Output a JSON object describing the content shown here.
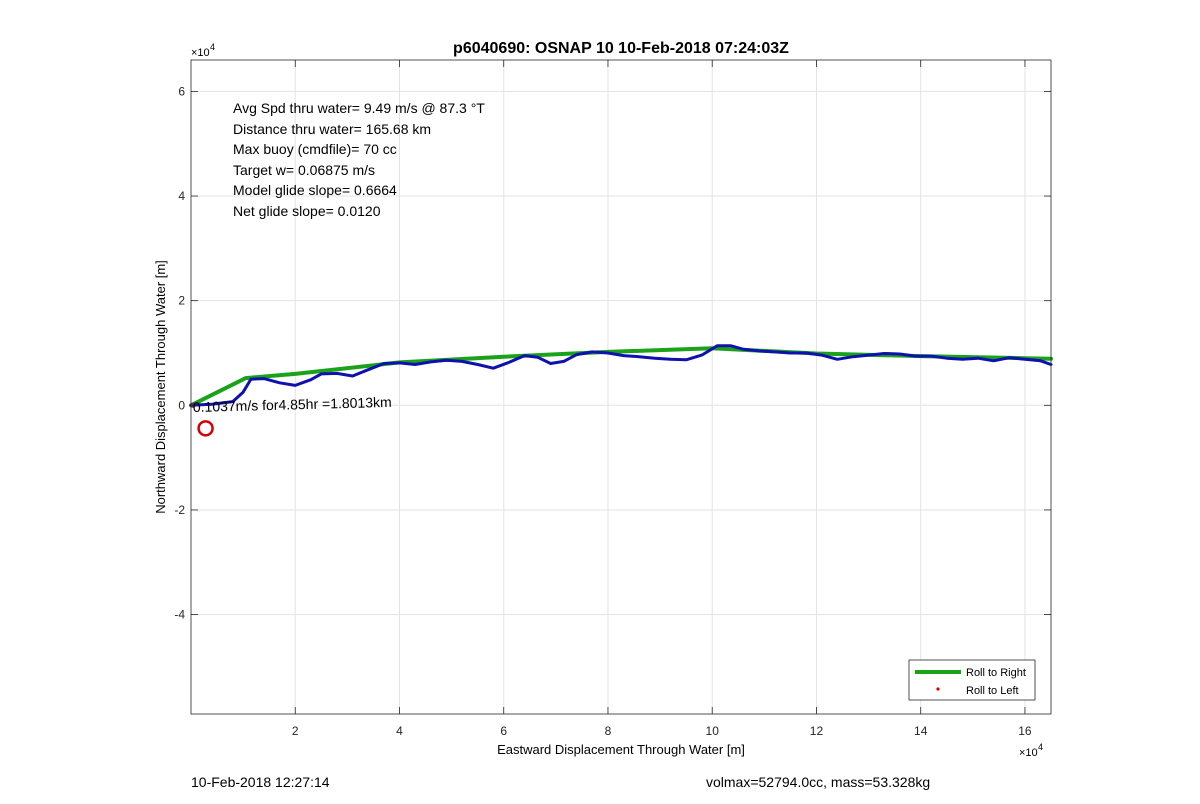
{
  "chart_data": {
    "type": "line",
    "title": "p6040690: OSNAP 10 10-Feb-2018 07:24:03Z",
    "xlabel": "Eastward Displacement Through Water [m]",
    "ylabel": "Northward Displacement Through Water [m]",
    "x_exponent_label": "×10",
    "x_exponent_power": "4",
    "y_exponent_label": "×10",
    "y_exponent_power": "4",
    "xlim": [
      0,
      165000
    ],
    "ylim": [
      -59000,
      66000
    ],
    "xticks": [
      20000,
      40000,
      60000,
      80000,
      100000,
      120000,
      140000,
      160000
    ],
    "xtick_labels": [
      "2",
      "4",
      "6",
      "8",
      "10",
      "12",
      "14",
      "16"
    ],
    "yticks": [
      -40000,
      -20000,
      0,
      20000,
      40000,
      60000
    ],
    "ytick_labels": [
      "-4",
      "-2",
      "0",
      "2",
      "4",
      "6"
    ],
    "grid": true,
    "legend_position": "bottom-right",
    "annotations": [
      "Avg Spd thru water=  9.49 m/s @  87.3 °T",
      "Distance thru water= 165.68 km",
      "Max buoy (cmdfile)= 70 cc",
      "Target w= 0.06875 m/s",
      "Model glide slope= 0.6664",
      "Net glide slope= 0.0120"
    ],
    "current_label": "0.1037m/s for4.85hr =1.8013km",
    "series": [
      {
        "name": "Roll to Right",
        "color": "#1aa31a",
        "style": "line",
        "x": [
          0,
          10500,
          20000,
          40000,
          60000,
          80000,
          100000,
          120000,
          140000,
          160000,
          165000
        ],
        "y": [
          0,
          5200,
          6000,
          8200,
          9300,
          10200,
          10900,
          9900,
          9400,
          9000,
          8900
        ]
      },
      {
        "name": "Roll to Left",
        "color": "#d40000",
        "style": "dot",
        "x": [],
        "y": []
      },
      {
        "name": "",
        "color": "#1010b0",
        "style": "line",
        "x": [
          0,
          4000,
          8000,
          10000,
          11500,
          14000,
          17000,
          20000,
          23000,
          25000,
          28000,
          31000,
          34000,
          37000,
          40000,
          43000,
          46000,
          49000,
          52000,
          55000,
          58000,
          61000,
          64000,
          66500,
          69000,
          71500,
          74000,
          77000,
          80000,
          83000,
          86000,
          89000,
          92000,
          95000,
          98000,
          101000,
          103500,
          106000,
          109000,
          112000,
          115000,
          118000,
          121000,
          124000,
          127000,
          130000,
          133000,
          136000,
          139000,
          142000,
          145000,
          148000,
          151000,
          154000,
          157000,
          160000,
          163000,
          165000
        ],
        "y": [
          0,
          200,
          700,
          2500,
          5000,
          5100,
          4300,
          3800,
          4900,
          6000,
          6100,
          5600,
          6800,
          8000,
          8100,
          7800,
          8300,
          8600,
          8400,
          7800,
          7100,
          8200,
          9500,
          9200,
          8000,
          8400,
          9700,
          10200,
          10000,
          9500,
          9300,
          9000,
          8800,
          8700,
          9600,
          11400,
          11400,
          10700,
          10400,
          10200,
          10000,
          10000,
          9600,
          8800,
          9300,
          9600,
          9900,
          9800,
          9400,
          9400,
          9000,
          8800,
          9000,
          8500,
          9100,
          8800,
          8500,
          7800
        ]
      }
    ],
    "current_marker": {
      "x": 2800,
      "y": -4400,
      "color": "#d40000"
    },
    "origin_marker": {
      "x": 0,
      "y": 0
    }
  },
  "footer": {
    "timestamp": "10-Feb-2018 12:27:14",
    "volmax": "volmax=52794.0cc, mass=53.328kg"
  }
}
